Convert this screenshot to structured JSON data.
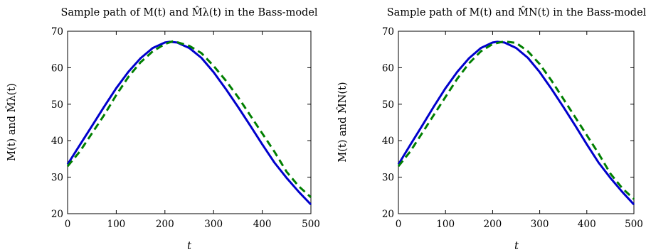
{
  "chart_data": [
    {
      "type": "line",
      "title": "Sample path of M(t) and M̂λ(t) in the Bass-model",
      "xlabel": "t",
      "ylabel": "M(t) and M̂λ(t)",
      "xlim": [
        0,
        500
      ],
      "ylim": [
        20,
        70
      ],
      "xticks": [
        0,
        100,
        200,
        300,
        400,
        500
      ],
      "yticks": [
        20,
        30,
        40,
        50,
        60,
        70
      ],
      "grid": false,
      "series": [
        {
          "color": "#0000cc",
          "style": "solid",
          "x": [
            0,
            25,
            50,
            75,
            100,
            125,
            150,
            175,
            200,
            210,
            225,
            250,
            275,
            300,
            325,
            350,
            375,
            400,
            425,
            450,
            475,
            500
          ],
          "y": [
            33.5,
            38.8,
            44.0,
            49.3,
            54.4,
            58.9,
            62.6,
            65.4,
            66.9,
            67.1,
            66.9,
            65.4,
            62.7,
            58.8,
            54.2,
            49.3,
            44.2,
            39.0,
            34.0,
            29.8,
            26.0,
            22.5
          ]
        },
        {
          "color": "#007f00",
          "style": "dashed",
          "x": [
            0,
            25,
            50,
            75,
            100,
            125,
            150,
            175,
            200,
            215,
            225,
            250,
            275,
            300,
            325,
            350,
            375,
            400,
            425,
            450,
            475,
            500
          ],
          "y": [
            33.0,
            37.0,
            42.0,
            47.0,
            52.5,
            57.5,
            61.5,
            64.5,
            66.5,
            67.2,
            67.0,
            66.0,
            64.0,
            60.5,
            56.5,
            52.0,
            47.0,
            42.0,
            37.0,
            31.5,
            27.5,
            24.5
          ]
        }
      ]
    },
    {
      "type": "line",
      "title": "Sample path of M(t) and M̂N(t) in the Bass-model",
      "xlabel": "t",
      "ylabel": "M(t) and M̂N(t)",
      "xlim": [
        0,
        500
      ],
      "ylim": [
        20,
        70
      ],
      "xticks": [
        0,
        100,
        200,
        300,
        400,
        500
      ],
      "yticks": [
        20,
        30,
        40,
        50,
        60,
        70
      ],
      "grid": false,
      "series": [
        {
          "color": "#0000cc",
          "style": "solid",
          "x": [
            0,
            25,
            50,
            75,
            100,
            125,
            150,
            175,
            200,
            210,
            225,
            250,
            275,
            300,
            325,
            350,
            375,
            400,
            425,
            450,
            475,
            500
          ],
          "y": [
            33.5,
            38.8,
            44.0,
            49.3,
            54.4,
            58.9,
            62.6,
            65.4,
            66.9,
            67.1,
            66.9,
            65.4,
            62.7,
            58.8,
            54.2,
            49.3,
            44.2,
            39.0,
            34.0,
            29.8,
            26.0,
            22.5
          ]
        },
        {
          "color": "#007f00",
          "style": "dashed",
          "x": [
            0,
            25,
            50,
            75,
            100,
            125,
            150,
            175,
            200,
            225,
            250,
            275,
            300,
            325,
            350,
            375,
            400,
            425,
            450,
            475,
            500
          ],
          "y": [
            33.0,
            37.0,
            42.0,
            47.0,
            52.0,
            57.0,
            61.2,
            64.5,
            66.5,
            67.2,
            66.8,
            64.5,
            61.0,
            56.5,
            51.5,
            46.5,
            41.5,
            36.5,
            31.0,
            27.0,
            24.0
          ]
        }
      ]
    }
  ]
}
